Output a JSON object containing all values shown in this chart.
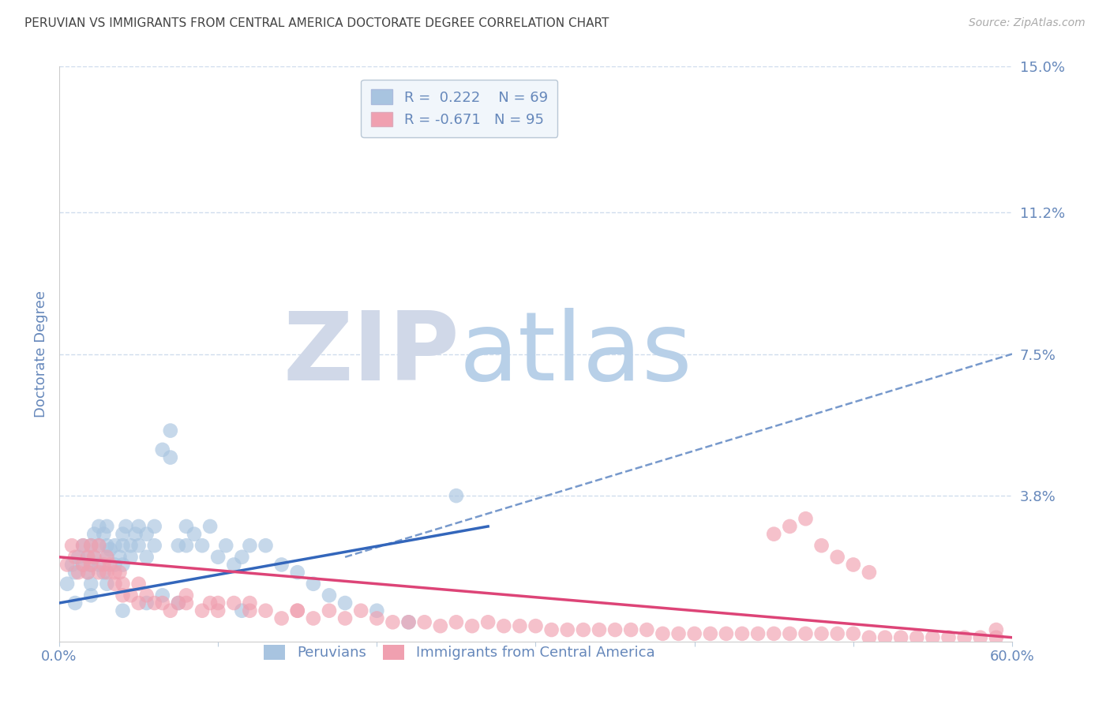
{
  "title": "PERUVIAN VS IMMIGRANTS FROM CENTRAL AMERICA DOCTORATE DEGREE CORRELATION CHART",
  "source": "Source: ZipAtlas.com",
  "ylabel": "Doctorate Degree",
  "xlim": [
    0.0,
    0.6
  ],
  "ylim": [
    0.0,
    0.15
  ],
  "blue_R": 0.222,
  "blue_N": 69,
  "pink_R": -0.671,
  "pink_N": 95,
  "blue_color": "#a8c4e0",
  "pink_color": "#f0a0b0",
  "blue_line_color": "#3366bb",
  "pink_line_color": "#dd4477",
  "dashed_line_color": "#7799cc",
  "watermark_zip": "ZIP",
  "watermark_atlas": "atlas",
  "watermark_color_zip": "#d0d8e8",
  "watermark_color_atlas": "#b8d0e8",
  "legend_box_color": "#eef4fb",
  "title_color": "#444444",
  "tick_color": "#6688bb",
  "grid_color": "#d0dded",
  "background_color": "#ffffff",
  "blue_line_x0": 0.0,
  "blue_line_x1": 0.27,
  "blue_line_y0": 0.01,
  "blue_line_y1": 0.03,
  "pink_line_x0": 0.0,
  "pink_line_x1": 0.6,
  "pink_line_y0": 0.022,
  "pink_line_y1": 0.001,
  "dash_line_x0": 0.18,
  "dash_line_x1": 0.6,
  "dash_line_y0": 0.022,
  "dash_line_y1": 0.075,
  "blue_scatter_x": [
    0.005,
    0.008,
    0.01,
    0.012,
    0.015,
    0.015,
    0.018,
    0.018,
    0.02,
    0.02,
    0.02,
    0.022,
    0.022,
    0.025,
    0.025,
    0.025,
    0.028,
    0.028,
    0.03,
    0.03,
    0.03,
    0.032,
    0.035,
    0.035,
    0.038,
    0.04,
    0.04,
    0.04,
    0.042,
    0.045,
    0.045,
    0.048,
    0.05,
    0.05,
    0.055,
    0.055,
    0.06,
    0.06,
    0.065,
    0.07,
    0.07,
    0.075,
    0.08,
    0.08,
    0.085,
    0.09,
    0.095,
    0.1,
    0.105,
    0.11,
    0.115,
    0.12,
    0.13,
    0.14,
    0.15,
    0.16,
    0.17,
    0.18,
    0.2,
    0.22,
    0.01,
    0.02,
    0.03,
    0.04,
    0.055,
    0.065,
    0.075,
    0.115,
    0.25
  ],
  "blue_scatter_y": [
    0.015,
    0.02,
    0.018,
    0.022,
    0.025,
    0.02,
    0.018,
    0.022,
    0.02,
    0.025,
    0.015,
    0.028,
    0.022,
    0.03,
    0.025,
    0.02,
    0.028,
    0.018,
    0.025,
    0.03,
    0.022,
    0.024,
    0.02,
    0.025,
    0.022,
    0.028,
    0.025,
    0.02,
    0.03,
    0.025,
    0.022,
    0.028,
    0.03,
    0.025,
    0.028,
    0.022,
    0.03,
    0.025,
    0.05,
    0.055,
    0.048,
    0.025,
    0.03,
    0.025,
    0.028,
    0.025,
    0.03,
    0.022,
    0.025,
    0.02,
    0.022,
    0.025,
    0.025,
    0.02,
    0.018,
    0.015,
    0.012,
    0.01,
    0.008,
    0.005,
    0.01,
    0.012,
    0.015,
    0.008,
    0.01,
    0.012,
    0.01,
    0.008,
    0.038
  ],
  "pink_scatter_x": [
    0.005,
    0.008,
    0.01,
    0.012,
    0.015,
    0.015,
    0.018,
    0.018,
    0.02,
    0.02,
    0.022,
    0.025,
    0.025,
    0.028,
    0.03,
    0.03,
    0.032,
    0.035,
    0.035,
    0.038,
    0.04,
    0.04,
    0.045,
    0.05,
    0.055,
    0.06,
    0.065,
    0.07,
    0.075,
    0.08,
    0.09,
    0.095,
    0.1,
    0.11,
    0.12,
    0.13,
    0.14,
    0.15,
    0.16,
    0.17,
    0.18,
    0.19,
    0.2,
    0.21,
    0.22,
    0.23,
    0.24,
    0.25,
    0.26,
    0.27,
    0.28,
    0.29,
    0.3,
    0.31,
    0.32,
    0.33,
    0.34,
    0.35,
    0.36,
    0.37,
    0.38,
    0.39,
    0.4,
    0.41,
    0.42,
    0.43,
    0.44,
    0.45,
    0.46,
    0.47,
    0.48,
    0.49,
    0.5,
    0.51,
    0.52,
    0.53,
    0.54,
    0.55,
    0.56,
    0.57,
    0.58,
    0.59,
    0.45,
    0.46,
    0.47,
    0.48,
    0.49,
    0.5,
    0.51,
    0.59,
    0.05,
    0.08,
    0.1,
    0.12,
    0.15
  ],
  "pink_scatter_y": [
    0.02,
    0.025,
    0.022,
    0.018,
    0.025,
    0.02,
    0.022,
    0.018,
    0.025,
    0.02,
    0.022,
    0.025,
    0.018,
    0.02,
    0.022,
    0.018,
    0.02,
    0.018,
    0.015,
    0.018,
    0.015,
    0.012,
    0.012,
    0.01,
    0.012,
    0.01,
    0.01,
    0.008,
    0.01,
    0.01,
    0.008,
    0.01,
    0.008,
    0.01,
    0.008,
    0.008,
    0.006,
    0.008,
    0.006,
    0.008,
    0.006,
    0.008,
    0.006,
    0.005,
    0.005,
    0.005,
    0.004,
    0.005,
    0.004,
    0.005,
    0.004,
    0.004,
    0.004,
    0.003,
    0.003,
    0.003,
    0.003,
    0.003,
    0.003,
    0.003,
    0.002,
    0.002,
    0.002,
    0.002,
    0.002,
    0.002,
    0.002,
    0.002,
    0.002,
    0.002,
    0.002,
    0.002,
    0.002,
    0.001,
    0.001,
    0.001,
    0.001,
    0.001,
    0.001,
    0.001,
    0.001,
    0.001,
    0.028,
    0.03,
    0.032,
    0.025,
    0.022,
    0.02,
    0.018,
    0.003,
    0.015,
    0.012,
    0.01,
    0.01,
    0.008
  ]
}
